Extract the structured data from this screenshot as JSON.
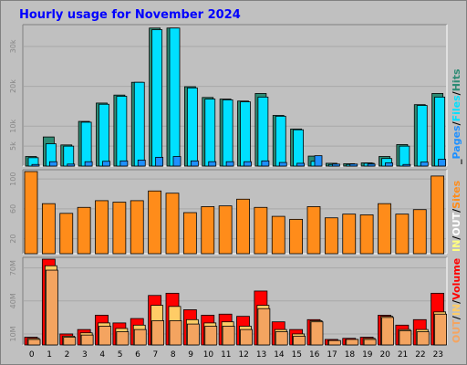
{
  "title": "Hourly usage for November 2024",
  "colors": {
    "page_bg": "#c0c0c0",
    "title": "#0000ff",
    "plot_bg": "#c0c0c0",
    "hits": "#2e8b74",
    "files": "#00e0ff",
    "pages": "#1e90ff",
    "sites": "#ff8c1a",
    "visits": "#ffff80",
    "volume": "#ff0000",
    "kbin": "#ffcc66",
    "kbout": "#f4a460"
  },
  "chart_data": [
    {
      "type": "bar",
      "name": "hits-files-pages",
      "categories": [
        "0",
        "1",
        "2",
        "3",
        "4",
        "5",
        "6",
        "7",
        "8",
        "9",
        "10",
        "11",
        "12",
        "13",
        "14",
        "15",
        "16",
        "17",
        "18",
        "19",
        "20",
        "21",
        "22",
        "23"
      ],
      "ylim": [
        0,
        35000
      ],
      "yticks": [
        5000,
        10000,
        20000,
        30000
      ],
      "ytick_labels": [
        "5k",
        "10k",
        "20k",
        "30k"
      ],
      "series": [
        {
          "values": [
            2400,
            7300,
            5300,
            11200,
            15800,
            17800,
            21000,
            34600,
            34600,
            19900,
            17200,
            16800,
            16300,
            18200,
            12700,
            9300,
            2500,
            700,
            600,
            800,
            2400,
            5400,
            15400,
            18200
          ]
        },
        {
          "values": [
            2100,
            5600,
            5000,
            11000,
            15500,
            17500,
            21000,
            34200,
            34600,
            19600,
            16800,
            16600,
            16100,
            17300,
            12500,
            9100,
            1200,
            400,
            400,
            700,
            1900,
            5000,
            15200,
            17300
          ]
        },
        {
          "values": [
            400,
            1100,
            500,
            1100,
            1200,
            1300,
            1500,
            2200,
            2400,
            1300,
            1100,
            1100,
            1100,
            1300,
            900,
            700,
            2600,
            500,
            500,
            500,
            800,
            400,
            1000,
            1700
          ]
        }
      ],
      "legend": [
        {
          "label": "Hits",
          "color": "#2e8b74"
        },
        {
          "label": "/",
          "color": "#000000"
        },
        {
          "label": "Files",
          "color": "#00e0ff"
        },
        {
          "label": "/",
          "color": "#000000"
        },
        {
          "label": "Pages",
          "color": "#1e90ff"
        },
        {
          "label": "_",
          "color": "#000000"
        }
      ]
    },
    {
      "type": "bar",
      "name": "sites",
      "categories": [
        "0",
        "1",
        "2",
        "3",
        "4",
        "5",
        "6",
        "7",
        "8",
        "9",
        "10",
        "11",
        "12",
        "13",
        "14",
        "15",
        "16",
        "17",
        "18",
        "19",
        "20",
        "21",
        "22",
        "23"
      ],
      "ylim": [
        0,
        110
      ],
      "yticks": [
        20,
        60,
        100
      ],
      "ytick_labels": [
        "20",
        "60",
        "100"
      ],
      "series": [
        {
          "values": [
            115,
            67,
            54,
            62,
            71,
            69,
            71,
            84,
            81,
            55,
            63,
            64,
            73,
            62,
            50,
            46,
            63,
            48,
            53,
            52,
            67,
            53,
            59,
            104
          ]
        }
      ],
      "legend": [
        {
          "label": "Sites",
          "color": "#ff8c1a"
        },
        {
          "label": "/",
          "color": "#000000"
        },
        {
          "label": "OUT",
          "color": "#ffffff"
        },
        {
          "label": "/",
          "color": "#000000"
        },
        {
          "label": "IN",
          "color": "#ffff80"
        }
      ]
    },
    {
      "type": "bar",
      "name": "volume",
      "categories": [
        "0",
        "1",
        "2",
        "3",
        "4",
        "5",
        "6",
        "7",
        "8",
        "9",
        "10",
        "11",
        "12",
        "13",
        "14",
        "15",
        "16",
        "17",
        "18",
        "19",
        "20",
        "21",
        "22",
        "23"
      ],
      "ylim": [
        0,
        78
      ],
      "yticks": [
        10,
        40,
        70
      ],
      "ytick_labels": [
        "10M",
        "40M",
        "70M"
      ],
      "series": [
        {
          "values": [
            7,
            78,
            10,
            14,
            27,
            20,
            24,
            45,
            47,
            32,
            27,
            28,
            26,
            49,
            21,
            14,
            23,
            5,
            6,
            7,
            27,
            18,
            23,
            47
          ]
        },
        {
          "values": [
            6,
            72,
            8,
            11,
            20,
            15,
            18,
            36,
            35,
            23,
            20,
            21,
            17,
            36,
            14,
            10,
            22,
            4,
            5,
            6,
            26,
            14,
            14,
            30
          ]
        },
        {
          "values": [
            5,
            68,
            7,
            9,
            17,
            12,
            14,
            22,
            22,
            19,
            17,
            17,
            14,
            33,
            12,
            8,
            21,
            4,
            5,
            5,
            25,
            13,
            12,
            28
          ]
        }
      ],
      "legend": [
        {
          "label": "Volume",
          "color": "#ff0000"
        },
        {
          "label": "/",
          "color": "#000000"
        },
        {
          "label": "IN",
          "color": "#ffcc66"
        },
        {
          "label": "/",
          "color": "#000000"
        },
        {
          "label": "OUT",
          "color": "#f4a460"
        }
      ]
    }
  ]
}
